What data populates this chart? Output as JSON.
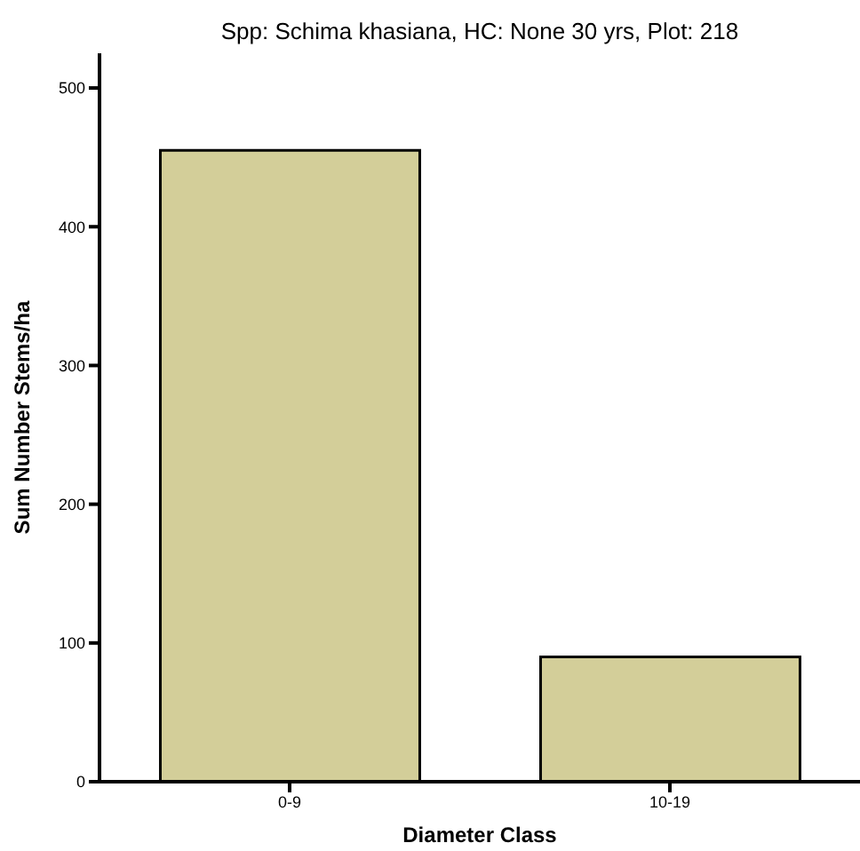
{
  "chart_data": {
    "type": "bar",
    "title": "Spp: Schima khasiana, HC: None 30 yrs, Plot: 218",
    "xlabel": "Diameter Class",
    "ylabel": "Sum Number Stems/ha",
    "categories": [
      "0-9",
      "10-19"
    ],
    "values": [
      455,
      90
    ],
    "color": "#d3ce99",
    "ylim": [
      0,
      525
    ],
    "yticks": [
      0,
      100,
      200,
      300,
      400,
      500
    ],
    "grid": false,
    "legend": false
  }
}
